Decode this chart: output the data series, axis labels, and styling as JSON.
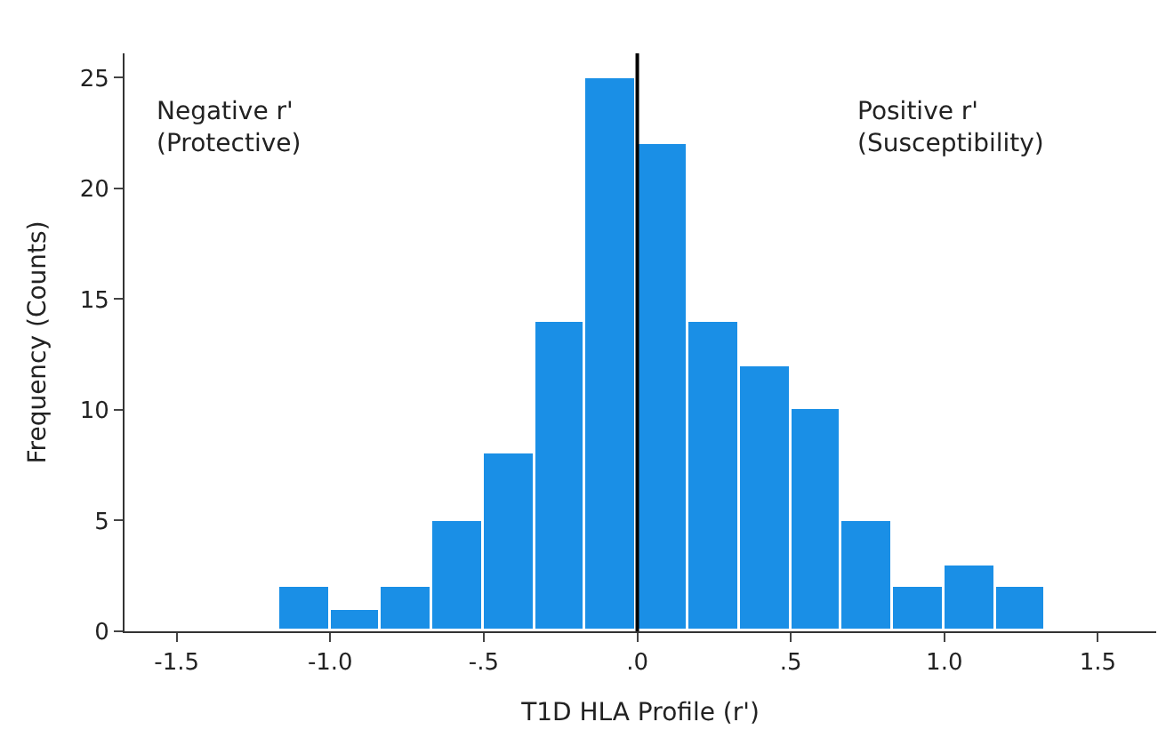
{
  "chart_data": {
    "type": "histogram",
    "xlabel": "T1D HLA Profile (r')",
    "ylabel": "Frequency (Counts)",
    "bins": [
      -1.167,
      -1.0,
      -0.833,
      -0.667,
      -0.5,
      -0.333,
      -0.167,
      0,
      0.167,
      0.333,
      0.5,
      0.667,
      0.833,
      1.0,
      1.167,
      1.333
    ],
    "values": [
      2,
      1,
      2,
      5,
      8,
      14,
      25,
      22,
      14,
      12,
      10,
      5,
      2,
      3,
      2
    ],
    "color": "#1a8fe6",
    "xlim": [
      -1.67,
      1.69
    ],
    "ylim": [
      0,
      26.1
    ],
    "xticks": [
      {
        "value": -1.5,
        "label": "-1.5"
      },
      {
        "value": -1.0,
        "label": "-1.0"
      },
      {
        "value": -0.5,
        "label": "-.5"
      },
      {
        "value": 0,
        "label": ".0"
      },
      {
        "value": 0.5,
        "label": ".5"
      },
      {
        "value": 1.0,
        "label": "1.0"
      },
      {
        "value": 1.5,
        "label": "1.5"
      }
    ],
    "yticks": [
      0,
      5,
      10,
      15,
      20,
      25
    ],
    "ref_lines": [
      {
        "axis": "x",
        "value": 0,
        "color": "#000000"
      }
    ],
    "annotations": [
      "Negative r'\n(Protective)",
      "Positive r'\n(Susceptibility)"
    ]
  }
}
